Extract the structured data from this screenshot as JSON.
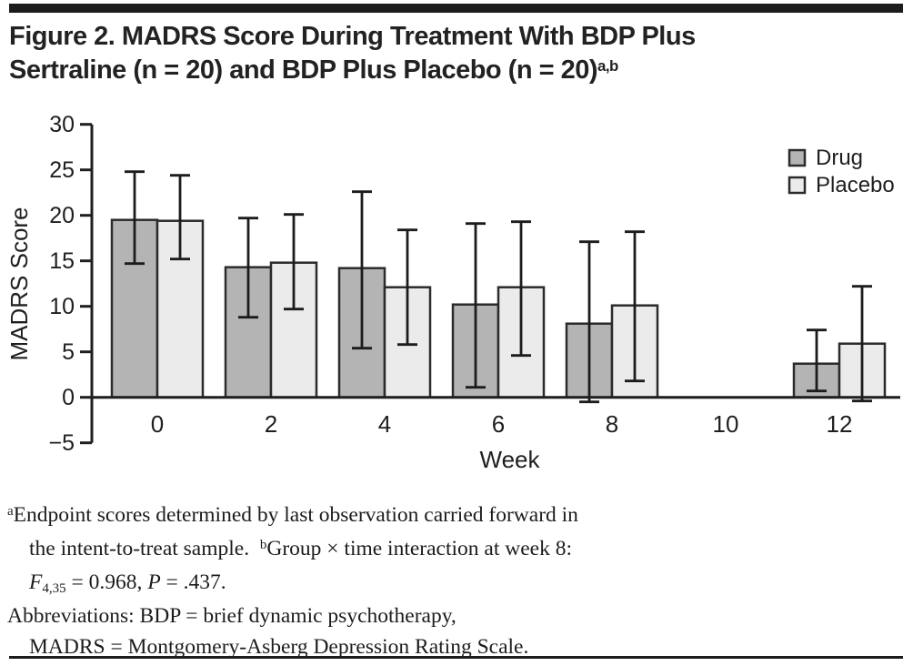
{
  "figure": {
    "title_line1": "Figure 2. MADRS Score During Treatment With BDP Plus",
    "title_line2": "Sertraline (n = 20) and BDP Plus Placebo (n = 20)",
    "title_superscript": "a,b"
  },
  "chart_data": {
    "type": "bar",
    "title": "",
    "xlabel": "Week",
    "ylabel": "MADRS Score",
    "ylim": [
      -5,
      30
    ],
    "yticks": [
      30,
      25,
      20,
      15,
      10,
      5,
      0,
      -5
    ],
    "categories": [
      0,
      2,
      4,
      6,
      8,
      10,
      12
    ],
    "grid": false,
    "legend_position": "top-right",
    "axis_color": "#1f1f1f",
    "bar_border_color": "#2b2b2b",
    "error_bar_color": "#1c1c1c",
    "series": [
      {
        "name": "Drug",
        "color": "#b4b4b4",
        "values": [
          19.5,
          14.3,
          14.2,
          10.2,
          8.1,
          null,
          3.7
        ],
        "error_low": [
          14.7,
          8.8,
          5.4,
          1.1,
          -0.5,
          null,
          0.7
        ],
        "error_high": [
          24.8,
          19.7,
          22.6,
          19.1,
          17.1,
          null,
          7.4
        ]
      },
      {
        "name": "Placebo",
        "color": "#ebebeb",
        "values": [
          19.4,
          14.8,
          12.1,
          12.1,
          10.1,
          null,
          5.9
        ],
        "error_low": [
          15.2,
          9.7,
          5.8,
          4.6,
          1.8,
          null,
          -0.4
        ],
        "error_high": [
          24.4,
          20.1,
          18.4,
          19.3,
          18.2,
          null,
          12.2
        ]
      }
    ]
  },
  "footnotes": {
    "lines": [
      {
        "indent": false,
        "segments": [
          {
            "t": "a",
            "s": "sup"
          },
          {
            "t": "Endpoint scores determined by last observation carried forward in",
            "s": ""
          }
        ]
      },
      {
        "indent": true,
        "segments": [
          {
            "t": "the intent-to-treat sample.  ",
            "s": ""
          },
          {
            "t": "b",
            "s": "sup"
          },
          {
            "t": "Group × time interaction at week 8:",
            "s": ""
          }
        ]
      },
      {
        "indent": true,
        "segments": [
          {
            "t": "F",
            "s": "i"
          },
          {
            "t": "4,35",
            "s": "sub"
          },
          {
            "t": " = 0.968, ",
            "s": ""
          },
          {
            "t": "P",
            "s": "i"
          },
          {
            "t": " = .437.",
            "s": ""
          }
        ]
      },
      {
        "indent": false,
        "segments": [
          {
            "t": "Abbreviations: BDP = brief dynamic psychotherapy,",
            "s": ""
          }
        ]
      },
      {
        "indent": true,
        "segments": [
          {
            "t": "MADRS = Montgomery-Asberg Depression Rating Scale.",
            "s": ""
          }
        ]
      }
    ]
  }
}
